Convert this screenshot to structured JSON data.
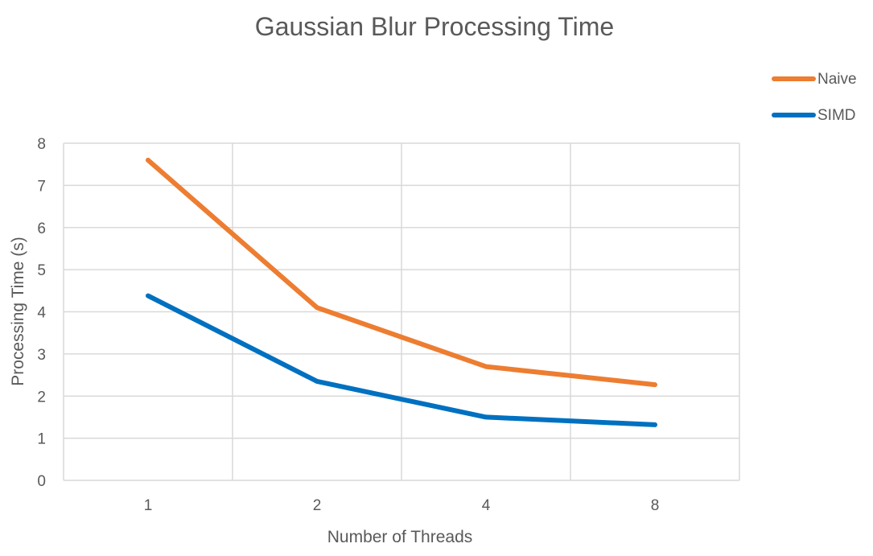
{
  "chart_data": {
    "type": "line",
    "title": "Gaussian Blur Processing Time",
    "xlabel": "Number of Threads",
    "ylabel": "Processing Time (s)",
    "categories": [
      "1",
      "2",
      "4",
      "8"
    ],
    "ylim": [
      0,
      8
    ],
    "yticks": [
      0,
      1,
      2,
      3,
      4,
      5,
      6,
      7,
      8
    ],
    "grid": true,
    "legend_position": "top-right",
    "series": [
      {
        "name": "Naive",
        "color": "#ED7D31",
        "values": [
          7.6,
          4.1,
          2.7,
          2.27
        ]
      },
      {
        "name": "SIMD",
        "color": "#0070C0",
        "values": [
          4.38,
          2.35,
          1.5,
          1.32
        ]
      }
    ]
  }
}
